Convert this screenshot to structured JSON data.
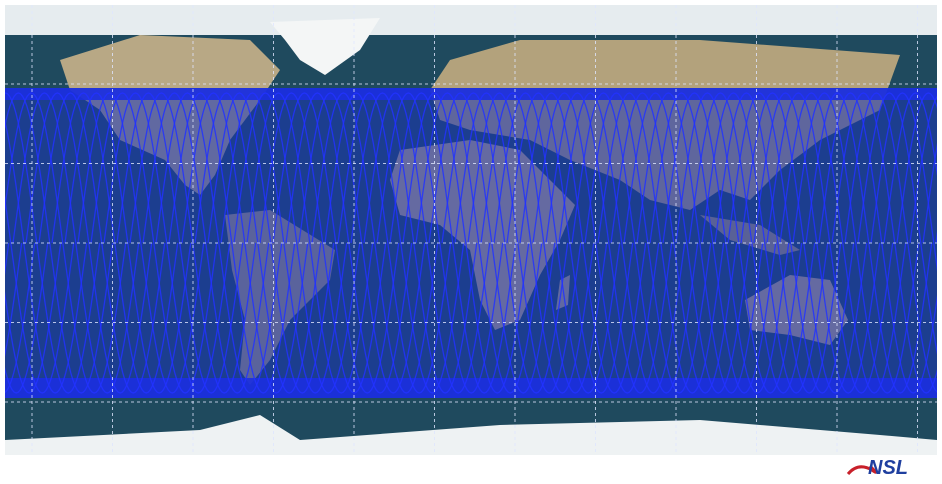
{
  "logo": {
    "text": "NSL"
  }
}
